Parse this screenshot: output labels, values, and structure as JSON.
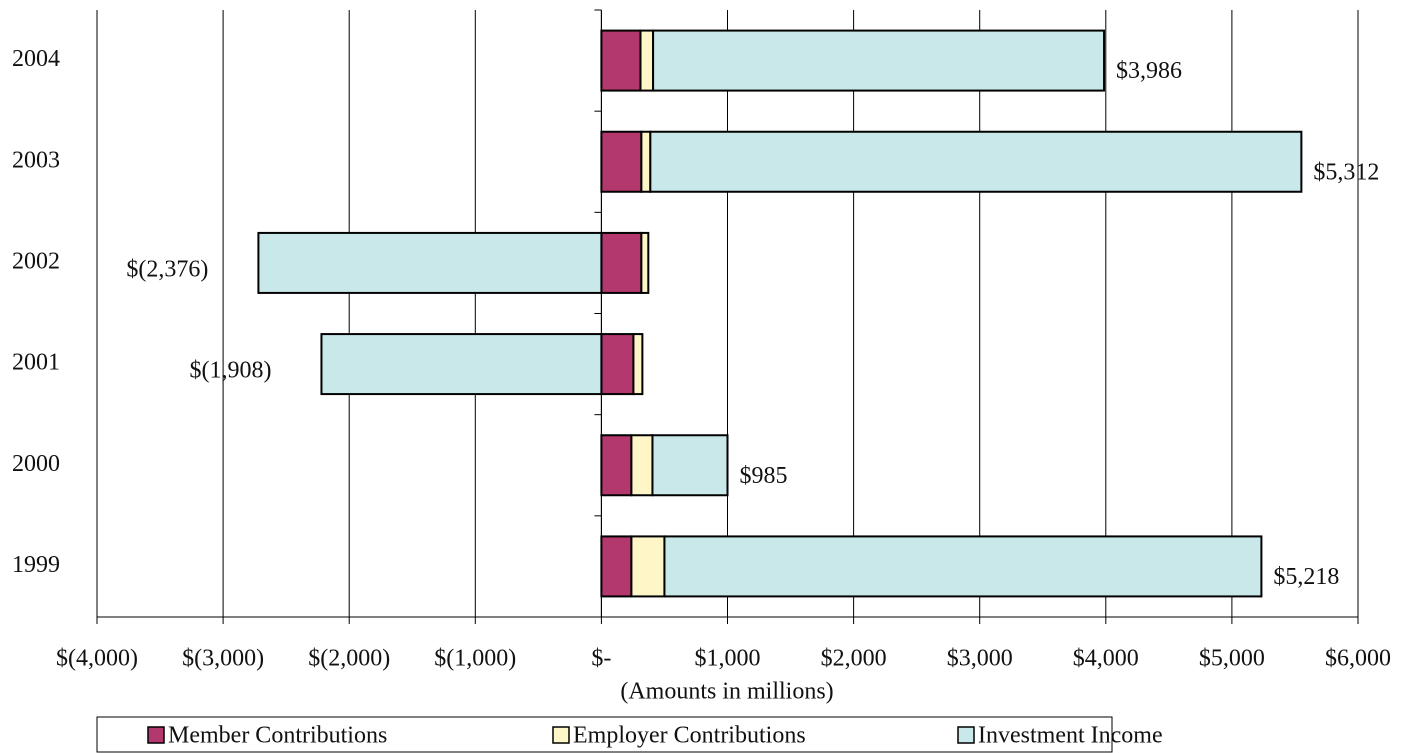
{
  "chart_data": {
    "type": "stacked-hbar",
    "xlabel": "(Amounts in millions)",
    "categories": [
      "2004",
      "2003",
      "2002",
      "2001",
      "2000",
      "1999"
    ],
    "series": [
      {
        "name": "Member Contributions",
        "color": "#b3386e",
        "values": [
          310,
          317,
          317,
          254,
          238,
          238
        ]
      },
      {
        "name": "Employer Contributions",
        "color": "#fff6c8",
        "values": [
          100,
          71,
          55,
          71,
          167,
          262
        ]
      },
      {
        "name": "Investment Income",
        "color": "#c8e8ea",
        "values": [
          3576,
          5163,
          -2720,
          -2220,
          595,
          4734
        ]
      }
    ],
    "totals": {
      "values": [
        3986,
        5312,
        -2376,
        -1908,
        985,
        5218
      ],
      "value_labels": [
        "$3,986",
        "$5,312",
        "$(2,376)",
        "$(1,908)",
        "$985",
        "$5,218"
      ]
    },
    "xlim": [
      -4000,
      6000
    ],
    "xticks": [
      {
        "value": -4000,
        "label": "$(4,000)"
      },
      {
        "value": -3000,
        "label": "$(3,000)"
      },
      {
        "value": -2000,
        "label": "$(2,000)"
      },
      {
        "value": -1000,
        "label": "$(1,000)"
      },
      {
        "value": 0,
        "label": "$-"
      },
      {
        "value": 1000,
        "label": "$1,000"
      },
      {
        "value": 2000,
        "label": "$2,000"
      },
      {
        "value": 3000,
        "label": "$3,000"
      },
      {
        "value": 4000,
        "label": "$4,000"
      },
      {
        "value": 5000,
        "label": "$5,000"
      },
      {
        "value": 6000,
        "label": "$6,000"
      }
    ],
    "grid": true,
    "legend": "bottom"
  }
}
